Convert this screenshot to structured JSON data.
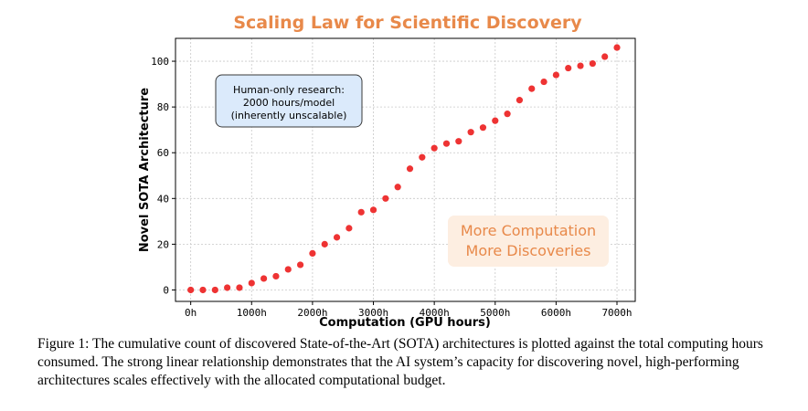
{
  "chart_data": {
    "type": "scatter",
    "title": "Scaling Law for Scientific Discovery",
    "xlabel": "Computation (GPU hours)",
    "ylabel": "Novel SOTA Architecture",
    "xlim": [
      -250,
      7300
    ],
    "ylim": [
      -5,
      110
    ],
    "xticks": [
      0,
      1000,
      2000,
      3000,
      4000,
      5000,
      6000,
      7000
    ],
    "xtick_labels": [
      "0h",
      "1000h",
      "2000h",
      "3000h",
      "4000h",
      "5000h",
      "6000h",
      "7000h"
    ],
    "yticks": [
      0,
      20,
      40,
      60,
      80,
      100
    ],
    "ytick_labels": [
      "0",
      "20",
      "40",
      "60",
      "80",
      "100"
    ],
    "grid": true,
    "marker_color": "#ee3333",
    "x": [
      0,
      200,
      400,
      600,
      800,
      1000,
      1200,
      1400,
      1600,
      1800,
      2000,
      2200,
      2400,
      2600,
      2800,
      3000,
      3200,
      3400,
      3600,
      3800,
      4000,
      4200,
      4400,
      4600,
      4800,
      5000,
      5200,
      5400,
      5600,
      5800,
      6000,
      6200,
      6400,
      6600,
      6800,
      7000
    ],
    "y": [
      0,
      0,
      0,
      1,
      1,
      3,
      5,
      6,
      9,
      11,
      16,
      20,
      23,
      27,
      34,
      35,
      40,
      45,
      53,
      58,
      62,
      64,
      65,
      69,
      71,
      74,
      77,
      83,
      88,
      91,
      94,
      97,
      98,
      99,
      102,
      106
    ],
    "annotations": [
      {
        "text": [
          "Human-only research:",
          "2000 hours/model",
          "(inherently unscalable)"
        ],
        "style": "blue-box"
      },
      {
        "text": [
          "More Computation",
          "More Discoveries"
        ],
        "style": "orange-box"
      }
    ]
  },
  "caption": "Figure 1: The cumulative count of discovered State-of-the-Art (SOTA) architectures is plotted against the total computing hours consumed. The strong linear relationship demonstrates that the AI system’s capacity for discovering novel, high-performing architectures scales effectively with the allocated computational budget.",
  "colors": {
    "title": "#e8894a",
    "blue_box_fill": "#dbeafb",
    "orange_box_fill": "#fdeee1"
  }
}
